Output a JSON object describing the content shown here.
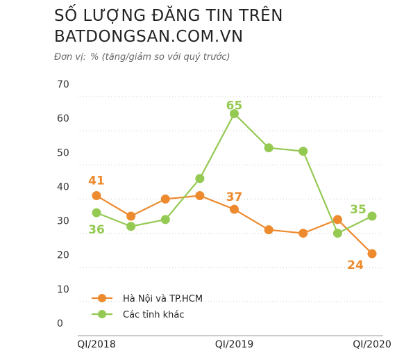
{
  "header": {
    "title_line1": "SỐ LƯỢNG ĐĂNG TIN TRÊN",
    "title_line2": "BATDONGSAN.COM.VN",
    "unit_label": "Đơn vị:",
    "unit_value": "% (tăng/giảm so với quý trước)"
  },
  "chart_data": {
    "type": "line",
    "title": "SỐ LƯỢNG ĐĂNG TIN TRÊN BATDONGSAN.COM.VN",
    "ylabel": "% (tăng/giảm so với quý trước)",
    "ylim": [
      0,
      70
    ],
    "yticks": [
      0,
      10,
      20,
      30,
      40,
      50,
      60,
      70
    ],
    "x": [
      1,
      2,
      3,
      4,
      5,
      6,
      7,
      8,
      9
    ],
    "xticks": [
      {
        "x": 1,
        "label": "QI/2018"
      },
      {
        "x": 5,
        "label": "QI/2019"
      },
      {
        "x": 9,
        "label": "QI/2020"
      }
    ],
    "grid": "horizontal-dotted",
    "legend_position": "bottom-left",
    "series": [
      {
        "name": "Hà Nội và TP.HCM",
        "color": "#ED8A2E",
        "values": [
          41,
          35,
          40,
          41,
          37,
          31,
          30,
          34,
          24
        ],
        "data_labels": [
          {
            "index": 0,
            "text": "41"
          },
          {
            "index": 4,
            "text": "37"
          },
          {
            "index": 8,
            "text": "24"
          }
        ]
      },
      {
        "name": "Các tỉnh khác",
        "color": "#94C952",
        "values": [
          36,
          32,
          34,
          46,
          65,
          55,
          54,
          30,
          35
        ],
        "data_labels": [
          {
            "index": 0,
            "text": "36"
          },
          {
            "index": 4,
            "text": "65"
          },
          {
            "index": 8,
            "text": "35"
          }
        ]
      }
    ]
  }
}
